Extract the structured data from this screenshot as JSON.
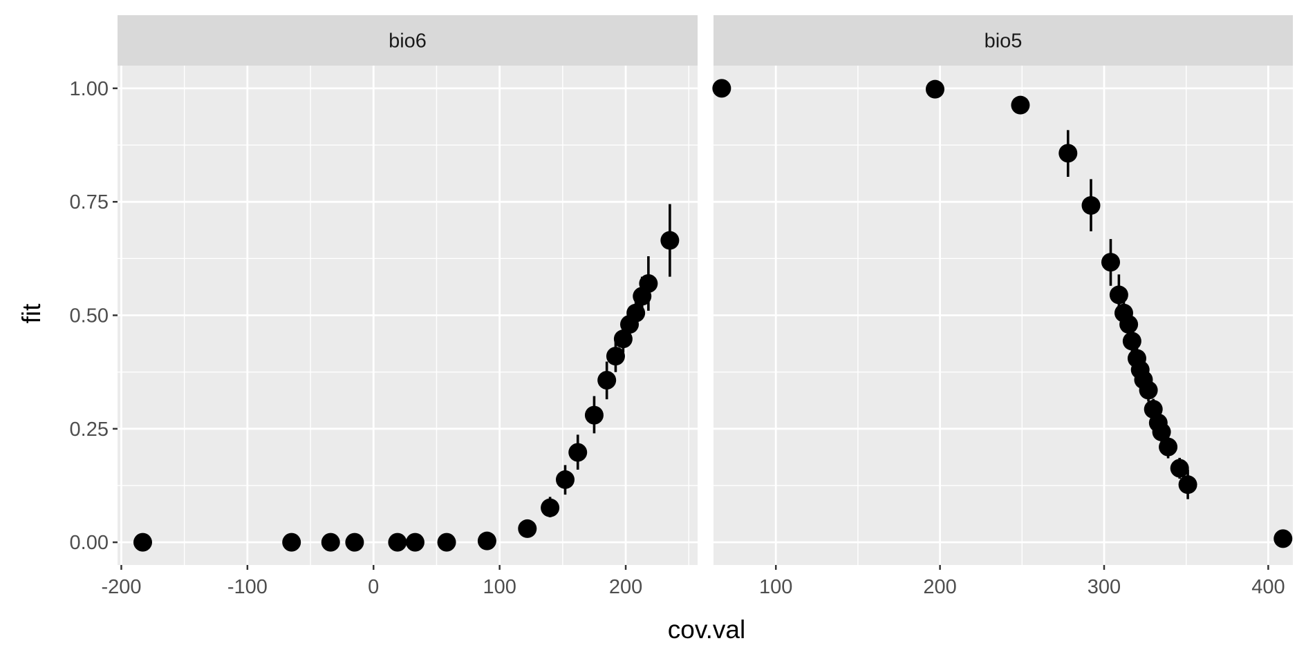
{
  "chart_data": {
    "type": "scatter",
    "xlabel": "cov.val",
    "ylabel": "fit",
    "panels": [
      {
        "strip": "bio6",
        "xlim": [
          -203,
          257
        ],
        "ylim": [
          -0.05,
          1.05
        ],
        "xticks": [
          -200,
          -100,
          0,
          100,
          200
        ],
        "xtick_labels": [
          "-200",
          "-100",
          "0",
          "100",
          "200"
        ],
        "points": [
          {
            "x": -183,
            "y": 0.0,
            "lo": 0.0,
            "hi": 0.0
          },
          {
            "x": -65,
            "y": 0.0,
            "lo": 0.0,
            "hi": 0.0
          },
          {
            "x": -34,
            "y": 0.0,
            "lo": 0.0,
            "hi": 0.0
          },
          {
            "x": -15,
            "y": 0.0,
            "lo": 0.0,
            "hi": 0.0
          },
          {
            "x": 19,
            "y": 0.0,
            "lo": 0.0,
            "hi": 0.0
          },
          {
            "x": 33,
            "y": 0.0,
            "lo": 0.0,
            "hi": 0.0
          },
          {
            "x": 58,
            "y": 0.0,
            "lo": 0.0,
            "hi": 0.0
          },
          {
            "x": 90,
            "y": 0.003,
            "lo": 0.0,
            "hi": 0.006
          },
          {
            "x": 122,
            "y": 0.03,
            "lo": 0.02,
            "hi": 0.04
          },
          {
            "x": 140,
            "y": 0.076,
            "lo": 0.055,
            "hi": 0.1
          },
          {
            "x": 152,
            "y": 0.138,
            "lo": 0.105,
            "hi": 0.17
          },
          {
            "x": 162,
            "y": 0.198,
            "lo": 0.16,
            "hi": 0.237
          },
          {
            "x": 175,
            "y": 0.28,
            "lo": 0.24,
            "hi": 0.322
          },
          {
            "x": 185,
            "y": 0.357,
            "lo": 0.315,
            "hi": 0.398
          },
          {
            "x": 192,
            "y": 0.41,
            "lo": 0.375,
            "hi": 0.445
          },
          {
            "x": 198,
            "y": 0.448,
            "lo": 0.418,
            "hi": 0.478
          },
          {
            "x": 203,
            "y": 0.48,
            "lo": 0.452,
            "hi": 0.51
          },
          {
            "x": 208,
            "y": 0.505,
            "lo": 0.475,
            "hi": 0.535
          },
          {
            "x": 213,
            "y": 0.542,
            "lo": 0.5,
            "hi": 0.585
          },
          {
            "x": 218,
            "y": 0.57,
            "lo": 0.51,
            "hi": 0.63
          },
          {
            "x": 235,
            "y": 0.665,
            "lo": 0.585,
            "hi": 0.745
          }
        ]
      },
      {
        "strip": "bio5",
        "xlim": [
          62,
          415
        ],
        "ylim": [
          -0.05,
          1.05
        ],
        "xticks": [
          100,
          200,
          300,
          400
        ],
        "xtick_labels": [
          "100",
          "200",
          "300",
          "400"
        ],
        "points": [
          {
            "x": 67,
            "y": 1.0,
            "lo": 1.0,
            "hi": 1.0
          },
          {
            "x": 197,
            "y": 0.998,
            "lo": 0.995,
            "hi": 1.0
          },
          {
            "x": 249,
            "y": 0.963,
            "lo": 0.948,
            "hi": 0.978
          },
          {
            "x": 278,
            "y": 0.857,
            "lo": 0.805,
            "hi": 0.908
          },
          {
            "x": 292,
            "y": 0.742,
            "lo": 0.685,
            "hi": 0.8
          },
          {
            "x": 304,
            "y": 0.617,
            "lo": 0.565,
            "hi": 0.668
          },
          {
            "x": 309,
            "y": 0.545,
            "lo": 0.5,
            "hi": 0.59
          },
          {
            "x": 312,
            "y": 0.505,
            "lo": 0.47,
            "hi": 0.54
          },
          {
            "x": 315,
            "y": 0.48,
            "lo": 0.45,
            "hi": 0.51
          },
          {
            "x": 317,
            "y": 0.443,
            "lo": 0.415,
            "hi": 0.47
          },
          {
            "x": 320,
            "y": 0.405,
            "lo": 0.38,
            "hi": 0.43
          },
          {
            "x": 322,
            "y": 0.38,
            "lo": 0.355,
            "hi": 0.405
          },
          {
            "x": 324,
            "y": 0.358,
            "lo": 0.333,
            "hi": 0.383
          },
          {
            "x": 327,
            "y": 0.335,
            "lo": 0.31,
            "hi": 0.36
          },
          {
            "x": 330,
            "y": 0.293,
            "lo": 0.27,
            "hi": 0.316
          },
          {
            "x": 333,
            "y": 0.263,
            "lo": 0.24,
            "hi": 0.287
          },
          {
            "x": 335,
            "y": 0.243,
            "lo": 0.22,
            "hi": 0.266
          },
          {
            "x": 339,
            "y": 0.21,
            "lo": 0.185,
            "hi": 0.235
          },
          {
            "x": 346,
            "y": 0.163,
            "lo": 0.14,
            "hi": 0.186
          },
          {
            "x": 351,
            "y": 0.127,
            "lo": 0.095,
            "hi": 0.16
          },
          {
            "x": 409,
            "y": 0.008,
            "lo": 0.004,
            "hi": 0.012
          }
        ]
      }
    ],
    "yticks": [
      0,
      0.25,
      0.5,
      0.75,
      1.0
    ],
    "ytick_labels": [
      "0.00",
      "0.25",
      "0.50",
      "0.75",
      "1.00"
    ],
    "grid": true,
    "colors": {
      "panel_bg": "#ebebeb",
      "strip_bg": "#d9d9d9",
      "grid": "#ffffff",
      "points": "#000000",
      "tick": "#333333"
    }
  }
}
